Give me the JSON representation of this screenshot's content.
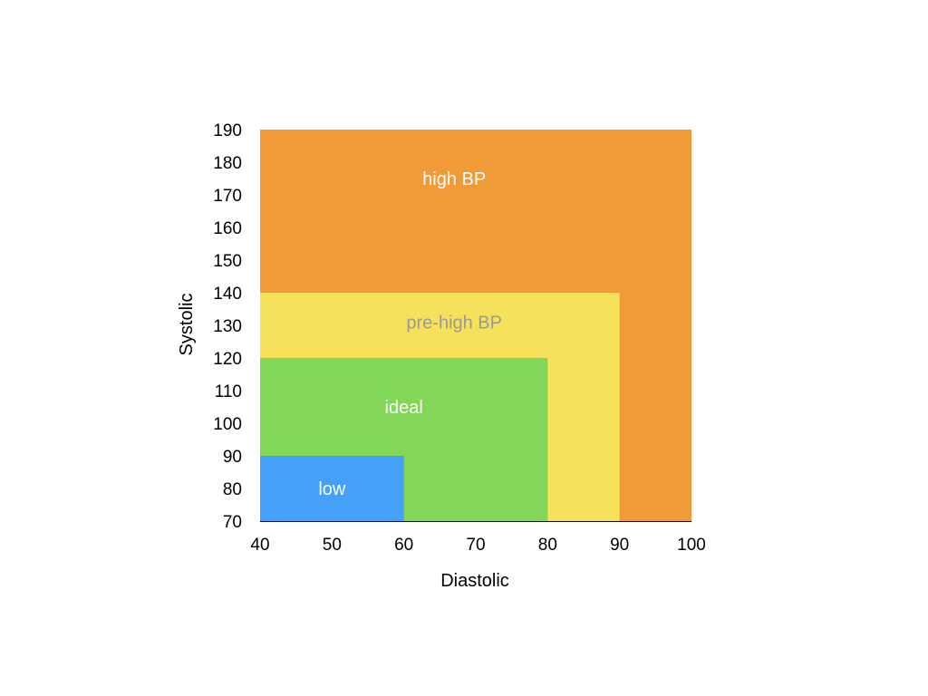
{
  "chart_data": {
    "type": "area",
    "title": "",
    "xlabel": "Diastolic",
    "ylabel": "Systolic",
    "xlim": [
      40,
      100
    ],
    "ylim": [
      70,
      190
    ],
    "xticks": [
      "40",
      "50",
      "60",
      "70",
      "80",
      "90",
      "100"
    ],
    "yticks": [
      "70",
      "80",
      "90",
      "100",
      "110",
      "120",
      "130",
      "140",
      "150",
      "160",
      "170",
      "180",
      "190"
    ],
    "grid": false,
    "zones": [
      {
        "name": "high BP",
        "x": [
          40,
          100
        ],
        "y": [
          70,
          190
        ],
        "color": "#F09A38",
        "label_color": "#ffffff",
        "label_pos": [
          67,
          175
        ]
      },
      {
        "name": "pre-high BP",
        "x": [
          40,
          90
        ],
        "y": [
          70,
          140
        ],
        "color": "#F5E15A",
        "label_color": "#9a9a9a",
        "label_pos": [
          67,
          131
        ]
      },
      {
        "name": "ideal",
        "x": [
          40,
          80
        ],
        "y": [
          70,
          120
        ],
        "color": "#82D758",
        "label_color": "#ffffff",
        "label_pos": [
          60,
          105
        ]
      },
      {
        "name": "low",
        "x": [
          40,
          60
        ],
        "y": [
          70,
          90
        ],
        "color": "#45A0F8",
        "label_color": "#ffffff",
        "label_pos": [
          50,
          80
        ]
      }
    ]
  }
}
